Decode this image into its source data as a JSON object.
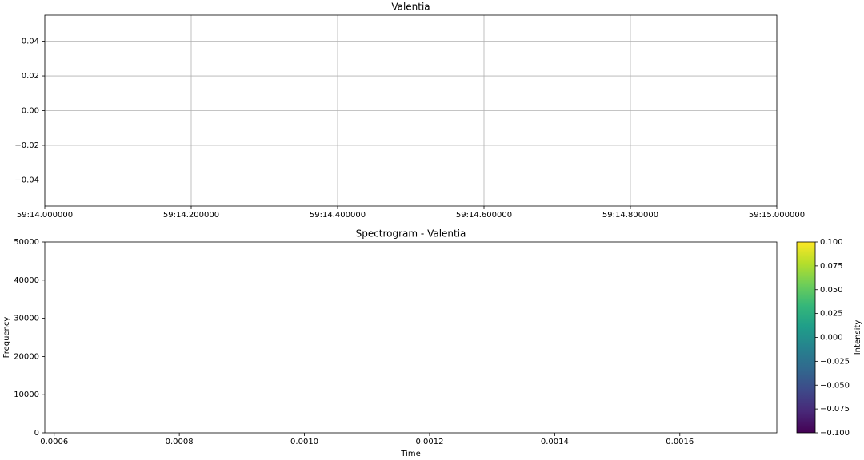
{
  "chart_data": [
    {
      "type": "line",
      "title": "Valentia",
      "grid": true,
      "xlim": [
        3554,
        3555
      ],
      "xticks": [
        {
          "value": 3554.0,
          "label": "59:14.000000"
        },
        {
          "value": 3554.2,
          "label": "59:14.200000"
        },
        {
          "value": 3554.4,
          "label": "59:14.400000"
        },
        {
          "value": 3554.6,
          "label": "59:14.600000"
        },
        {
          "value": 3554.8,
          "label": "59:14.800000"
        },
        {
          "value": 3555.0,
          "label": "59:15.000000"
        }
      ],
      "ylim": [
        -0.055,
        0.055
      ],
      "yticks": [
        {
          "value": -0.04,
          "label": "−0.04"
        },
        {
          "value": -0.02,
          "label": "−0.02"
        },
        {
          "value": 0,
          "label": "0.00"
        },
        0.02,
        0.04
      ]
    },
    {
      "type": "spectrogram",
      "title": "Spectrogram - Valentia",
      "xlabel": "Time",
      "ylabel": "Frequency",
      "grid": false,
      "xlim": [
        0.000585,
        0.001755
      ],
      "xticks": [
        0.0006,
        0.0008,
        {
          "value": 0.001,
          "label": "0.0010"
        },
        0.0012,
        0.0014,
        0.0016
      ],
      "ylim": [
        0,
        50000
      ],
      "yticks": [
        0,
        10000,
        20000,
        30000,
        40000,
        50000
      ],
      "colorbar": {
        "label": "Intensity",
        "clim": [
          -0.1,
          0.1
        ],
        "colors": [
          "#440154",
          "#482878",
          "#3e4989",
          "#31688e",
          "#26828e",
          "#1f9e89",
          "#35b779",
          "#6ece58",
          "#b5de2b",
          "#fde725"
        ],
        "ticks": [
          {
            "value": -0.1,
            "label": "−0.100"
          },
          {
            "value": -0.075,
            "label": "−0.075"
          },
          {
            "value": -0.05,
            "label": "−0.050"
          },
          {
            "value": -0.025,
            "label": "−0.025"
          },
          {
            "value": 0,
            "label": "0.000"
          },
          {
            "value": 0.025,
            "label": "0.025"
          },
          {
            "value": 0.05,
            "label": "0.050"
          },
          {
            "value": 0.075,
            "label": "0.075"
          },
          {
            "value": 0.1,
            "label": "0.100"
          }
        ]
      }
    }
  ]
}
